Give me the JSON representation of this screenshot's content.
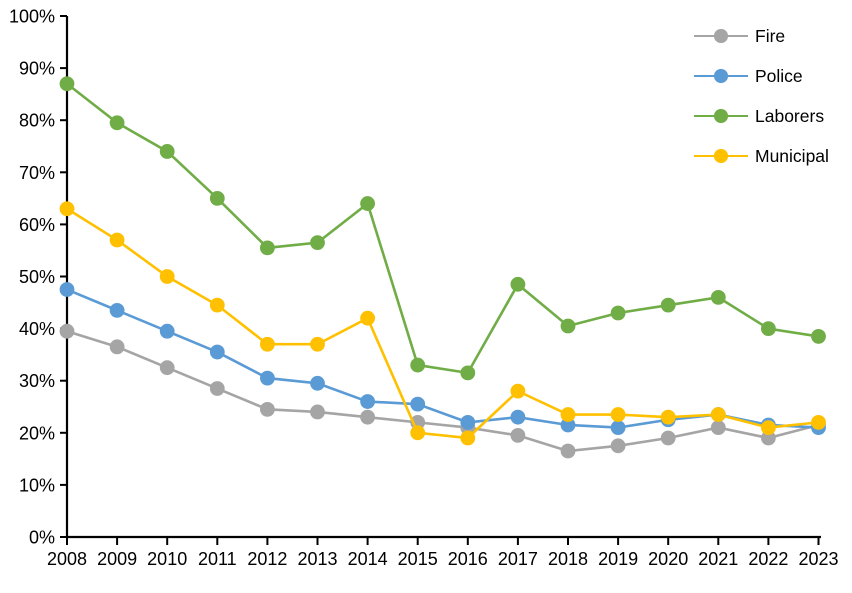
{
  "chart_data": {
    "type": "line",
    "title": "",
    "xlabel": "",
    "ylabel": "",
    "categories": [
      "2008",
      "2009",
      "2010",
      "2011",
      "2012",
      "2013",
      "2014",
      "2015",
      "2016",
      "2017",
      "2018",
      "2019",
      "2020",
      "2021",
      "2022",
      "2023"
    ],
    "series": [
      {
        "name": "Fire",
        "color": "#A5A5A5",
        "values": [
          39.5,
          36.5,
          32.5,
          28.5,
          24.5,
          24,
          23,
          22,
          21,
          19.5,
          16.5,
          17.5,
          19,
          21,
          19,
          21.5
        ]
      },
      {
        "name": "Police",
        "color": "#5B9BD5",
        "values": [
          47.5,
          43.5,
          39.5,
          35.5,
          30.5,
          29.5,
          26,
          25.5,
          22,
          23,
          21.5,
          21,
          22.5,
          23.5,
          21.5,
          21
        ]
      },
      {
        "name": "Laborers",
        "color": "#70AD47",
        "values": [
          87,
          79.5,
          74,
          65,
          55.5,
          56.5,
          64,
          33,
          31.5,
          48.5,
          40.5,
          43,
          44.5,
          46,
          40,
          38.5
        ]
      },
      {
        "name": "Municipal",
        "color": "#FFC000",
        "values": [
          63,
          57,
          50,
          44.5,
          37,
          37,
          42,
          20,
          19,
          28,
          23.5,
          23.5,
          23,
          23.5,
          21,
          22
        ]
      }
    ],
    "ylim": [
      0,
      100
    ],
    "y_tick_step": 10,
    "y_tick_suffix": "%",
    "grid": false,
    "legend_position": "top-right",
    "axis_color": "#000000",
    "background": "#FFFFFF"
  }
}
